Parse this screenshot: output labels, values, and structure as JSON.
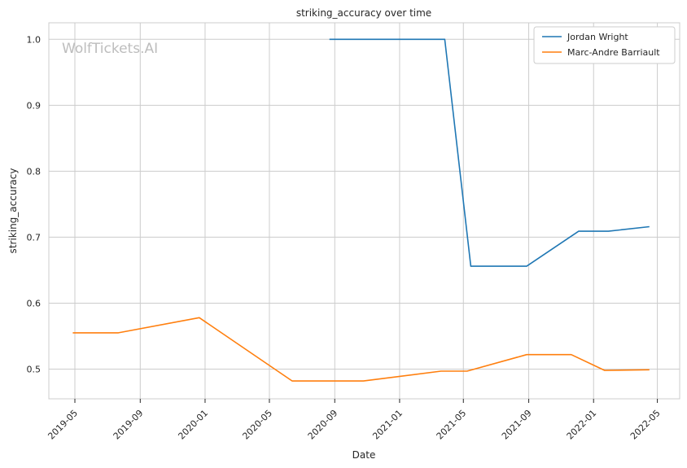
{
  "watermark": "WolfTickets.AI",
  "chart_data": {
    "type": "line",
    "title": "striking_accuracy over time",
    "xlabel": "Date",
    "ylabel": "striking_accuracy",
    "grid": true,
    "legend_position": "top-right",
    "x_ticks": [
      "2019-05",
      "2019-09",
      "2020-01",
      "2020-05",
      "2020-09",
      "2021-01",
      "2021-05",
      "2021-09",
      "2022-01",
      "2022-05"
    ],
    "y_ticks": [
      "0.5",
      "0.6",
      "0.7",
      "0.8",
      "0.9",
      "1.0"
    ],
    "xlim": [
      "2019-03-13",
      "2022-06-12"
    ],
    "ylim": [
      0.455,
      1.025
    ],
    "series": [
      {
        "name": "Jordan Wright",
        "color": "#1f77b4",
        "points": [
          {
            "x": "2020-08-22",
            "y": 1.0
          },
          {
            "x": "2021-03-27",
            "y": 1.0
          },
          {
            "x": "2021-05-15",
            "y": 0.656
          },
          {
            "x": "2021-08-28",
            "y": 0.656
          },
          {
            "x": "2021-12-04",
            "y": 0.709
          },
          {
            "x": "2022-01-29",
            "y": 0.709
          },
          {
            "x": "2022-04-16",
            "y": 0.716
          }
        ]
      },
      {
        "name": "Marc-Andre Barriault",
        "color": "#ff7f0e",
        "points": [
          {
            "x": "2019-04-27",
            "y": 0.555
          },
          {
            "x": "2019-07-22",
            "y": 0.555
          },
          {
            "x": "2019-12-21",
            "y": 0.578
          },
          {
            "x": "2020-06-13",
            "y": 0.482
          },
          {
            "x": "2020-10-25",
            "y": 0.482
          },
          {
            "x": "2021-03-20",
            "y": 0.497
          },
          {
            "x": "2021-05-08",
            "y": 0.497
          },
          {
            "x": "2021-08-28",
            "y": 0.522
          },
          {
            "x": "2021-11-20",
            "y": 0.522
          },
          {
            "x": "2022-01-22",
            "y": 0.498
          },
          {
            "x": "2022-04-16",
            "y": 0.499
          }
        ]
      }
    ]
  }
}
